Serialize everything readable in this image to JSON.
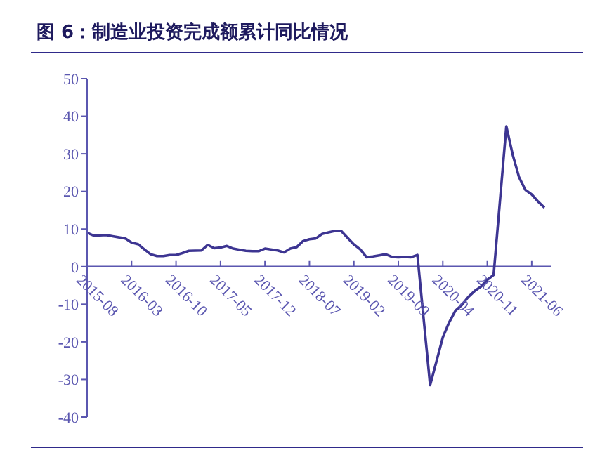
{
  "chart_data": {
    "type": "line",
    "title": "图 6：制造业投资完成额累计同比情况",
    "x": [
      "2015-08",
      "2015-09",
      "2015-10",
      "2015-11",
      "2015-12",
      "2016-02",
      "2016-03",
      "2016-04",
      "2016-05",
      "2016-06",
      "2016-07",
      "2016-08",
      "2016-09",
      "2016-10",
      "2016-11",
      "2016-12",
      "2017-02",
      "2017-03",
      "2017-04",
      "2017-05",
      "2017-06",
      "2017-07",
      "2017-08",
      "2017-09",
      "2017-10",
      "2017-11",
      "2017-12",
      "2018-02",
      "2018-03",
      "2018-04",
      "2018-05",
      "2018-06",
      "2018-07",
      "2018-08",
      "2018-09",
      "2018-10",
      "2018-11",
      "2018-12",
      "2019-02",
      "2019-03",
      "2019-04",
      "2019-05",
      "2019-06",
      "2019-07",
      "2019-08",
      "2019-09",
      "2019-10",
      "2019-11",
      "2019-12",
      "2020-02",
      "2020-03",
      "2020-04",
      "2020-05",
      "2020-06",
      "2020-07",
      "2020-08",
      "2020-09",
      "2020-10",
      "2020-11",
      "2020-12",
      "2021-02",
      "2021-03",
      "2021-04",
      "2021-05",
      "2021-06",
      "2021-07",
      "2021-08"
    ],
    "series": [
      {
        "color": "#3d3592",
        "values": [
          9.0,
          8.3,
          8.3,
          8.4,
          8.1,
          7.5,
          6.4,
          6.0,
          4.6,
          3.3,
          2.8,
          2.8,
          3.1,
          3.1,
          3.6,
          4.2,
          4.3,
          5.8,
          4.9,
          5.1,
          5.5,
          4.8,
          4.5,
          4.2,
          4.1,
          4.1,
          4.8,
          4.3,
          3.8,
          4.8,
          5.2,
          6.8,
          7.3,
          7.5,
          8.7,
          9.1,
          9.5,
          9.5,
          5.9,
          4.6,
          2.5,
          2.7,
          3.0,
          3.3,
          2.6,
          2.5,
          2.6,
          2.5,
          3.1,
          -31.5,
          -25.2,
          -18.8,
          -14.8,
          -11.7,
          -10.2,
          -8.1,
          -6.5,
          -5.3,
          -3.5,
          -2.2,
          37.3,
          29.8,
          23.8,
          20.4,
          19.2,
          17.3,
          15.7
        ]
      }
    ],
    "xlim": [
      "2015-08",
      "2021-09"
    ],
    "xticks": [
      "2015-08",
      "2016-03",
      "2016-10",
      "2017-05",
      "2017-12",
      "2018-07",
      "2019-02",
      "2019-09",
      "2020-04",
      "2020-11",
      "2021-06"
    ],
    "ylim": [
      -40,
      50
    ],
    "yticks": [
      -40,
      -30,
      -20,
      -10,
      0,
      10,
      20,
      30,
      40,
      50
    ]
  }
}
